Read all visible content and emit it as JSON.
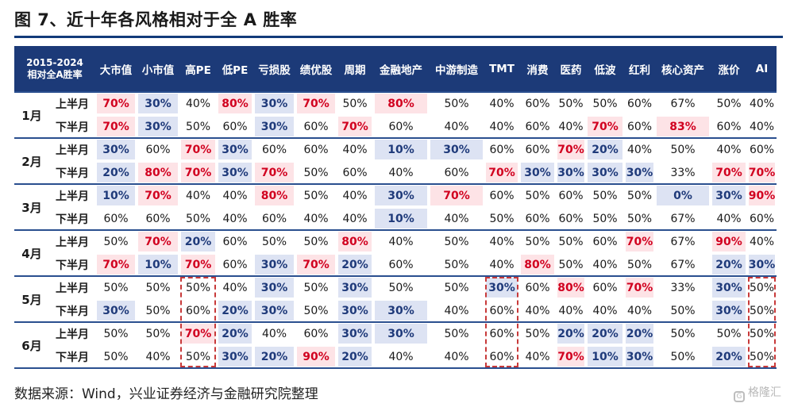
{
  "title": "图 7、近十年各风格相对于全 A 胜率",
  "source": "数据来源：Wind，兴业证券经济与金融研究院整理",
  "watermark": "格隆汇",
  "colors": {
    "header_bg": "#1c3a78",
    "high_bg": "#fde3e6",
    "high_text": "#d1001f",
    "low_bg": "#dde3f3",
    "low_text": "#1f3a7a",
    "dashed_box": "#c83a3a"
  },
  "chart_data": {
    "type": "table",
    "corner_label": [
      "2015-2024",
      "相对全A胜率"
    ],
    "columns": [
      "大市值",
      "小市值",
      "高PE",
      "低PE",
      "亏损股",
      "绩优股",
      "周期",
      "金融地产",
      "中游制造",
      "TMT",
      "消费",
      "医药",
      "低波",
      "红利",
      "核心资产",
      "涨价",
      "AI"
    ],
    "half_labels": [
      "上半月",
      "下半月"
    ],
    "months": [
      {
        "month": "1月",
        "upper": [
          "70%",
          "30%",
          "40%",
          "80%",
          "30%",
          "70%",
          "50%",
          "80%",
          "50%",
          "40%",
          "60%",
          "50%",
          "50%",
          "60%",
          "67%",
          "50%",
          "40%"
        ],
        "lower": [
          "70%",
          "30%",
          "50%",
          "60%",
          "30%",
          "60%",
          "70%",
          "60%",
          "40%",
          "40%",
          "60%",
          "40%",
          "70%",
          "60%",
          "83%",
          "60%",
          "40%"
        ]
      },
      {
        "month": "2月",
        "upper": [
          "30%",
          "60%",
          "70%",
          "30%",
          "60%",
          "60%",
          "40%",
          "10%",
          "30%",
          "60%",
          "60%",
          "70%",
          "20%",
          "40%",
          "50%",
          "40%",
          "60%"
        ],
        "lower": [
          "20%",
          "80%",
          "70%",
          "30%",
          "70%",
          "50%",
          "60%",
          "40%",
          "60%",
          "70%",
          "30%",
          "30%",
          "30%",
          "30%",
          "33%",
          "70%",
          "70%"
        ]
      },
      {
        "month": "3月",
        "upper": [
          "10%",
          "70%",
          "40%",
          "40%",
          "80%",
          "50%",
          "40%",
          "30%",
          "70%",
          "60%",
          "50%",
          "60%",
          "50%",
          "50%",
          "0%",
          "30%",
          "90%"
        ],
        "lower": [
          "60%",
          "60%",
          "50%",
          "40%",
          "60%",
          "40%",
          "40%",
          "10%",
          "40%",
          "50%",
          "60%",
          "60%",
          "50%",
          "50%",
          "67%",
          "40%",
          "60%"
        ]
      },
      {
        "month": "4月",
        "upper": [
          "50%",
          "70%",
          "20%",
          "60%",
          "50%",
          "50%",
          "80%",
          "40%",
          "50%",
          "40%",
          "50%",
          "50%",
          "60%",
          "70%",
          "67%",
          "90%",
          "40%"
        ],
        "lower": [
          "70%",
          "10%",
          "70%",
          "60%",
          "30%",
          "70%",
          "20%",
          "60%",
          "50%",
          "40%",
          "80%",
          "50%",
          "40%",
          "50%",
          "67%",
          "20%",
          "30%"
        ]
      },
      {
        "month": "5月",
        "upper": [
          "50%",
          "50%",
          "50%",
          "40%",
          "30%",
          "50%",
          "30%",
          "50%",
          "50%",
          "30%",
          "60%",
          "80%",
          "60%",
          "70%",
          "33%",
          "30%",
          "50%"
        ],
        "lower": [
          "30%",
          "50%",
          "60%",
          "20%",
          "30%",
          "50%",
          "30%",
          "30%",
          "40%",
          "60%",
          "40%",
          "40%",
          "40%",
          "40%",
          "50%",
          "30%",
          "50%"
        ]
      },
      {
        "month": "6月",
        "upper": [
          "50%",
          "50%",
          "70%",
          "20%",
          "40%",
          "60%",
          "30%",
          "30%",
          "50%",
          "60%",
          "50%",
          "20%",
          "20%",
          "20%",
          "50%",
          "50%",
          "50%"
        ],
        "lower": [
          "50%",
          "40%",
          "50%",
          "30%",
          "20%",
          "90%",
          "20%",
          "40%",
          "40%",
          "60%",
          "40%",
          "70%",
          "10%",
          "30%",
          "50%",
          "20%",
          "50%"
        ]
      }
    ],
    "highlight_rule": "values ≥70% shaded pink/red; values ≤30% shaded blue",
    "dashed_boxes": [
      "高PE 5月-6月",
      "TMT 5月-6月",
      "AI 5月-6月"
    ]
  }
}
